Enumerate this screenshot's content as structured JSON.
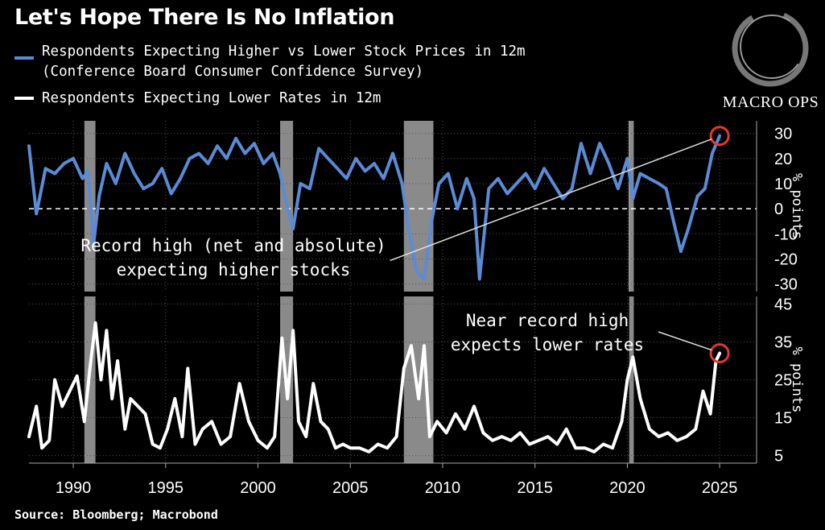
{
  "title": "Let's Hope There Is No Inflation",
  "legend": [
    {
      "label": "Respondents Expecting Higher vs Lower Stock Prices in 12m",
      "color": "#5b8bd6"
    },
    {
      "label": "(Conference Board Consumer Confidence Survey)",
      "color": ""
    },
    {
      "label": "Respondents Expecting Lower Rates in 12m",
      "color": "#ffffff"
    }
  ],
  "source": "Source: Bloomberg; Macrobond",
  "logo_text": "MACRO OPS",
  "chart_data": [
    {
      "type": "line",
      "name": "Respondents Expecting Higher vs Lower Stock Prices in 12m",
      "ylabel": "% points",
      "ylim": [
        -33,
        35
      ],
      "yticks": [
        30,
        20,
        10,
        0,
        -10,
        -20,
        -30
      ],
      "annotation": [
        "Record high (net and absolute)",
        "expecting higher stocks"
      ],
      "x": [
        1987.6,
        1988.0,
        1988.5,
        1989.0,
        1989.5,
        1990.0,
        1990.5,
        1990.8,
        1991.1,
        1991.4,
        1991.8,
        1992.3,
        1992.8,
        1993.3,
        1993.8,
        1994.3,
        1994.8,
        1995.3,
        1995.8,
        1996.3,
        1996.8,
        1997.3,
        1997.8,
        1998.3,
        1998.8,
        1999.3,
        1999.8,
        2000.3,
        2000.8,
        2001.2,
        2001.6,
        2001.9,
        2002.3,
        2002.8,
        2003.3,
        2003.8,
        2004.3,
        2004.8,
        2005.3,
        2005.8,
        2006.3,
        2006.8,
        2007.3,
        2007.8,
        2008.2,
        2008.6,
        2009.0,
        2009.4,
        2009.8,
        2010.3,
        2010.8,
        2011.3,
        2011.7,
        2012.0,
        2012.5,
        2013.0,
        2013.5,
        2014.0,
        2014.5,
        2015.0,
        2015.5,
        2016.0,
        2016.5,
        2017.0,
        2017.5,
        2018.0,
        2018.5,
        2019.0,
        2019.5,
        2020.0,
        2020.3,
        2020.7,
        2021.2,
        2021.7,
        2022.1,
        2022.5,
        2022.9,
        2023.3,
        2023.8,
        2024.2,
        2024.6,
        2025.0
      ],
      "y": [
        25,
        -2,
        16,
        14,
        18,
        20,
        12,
        15,
        -14,
        5,
        18,
        10,
        22,
        14,
        8,
        10,
        16,
        6,
        12,
        20,
        22,
        18,
        25,
        20,
        28,
        22,
        26,
        18,
        22,
        14,
        0,
        -8,
        10,
        8,
        24,
        20,
        16,
        12,
        20,
        15,
        18,
        12,
        22,
        10,
        -10,
        -25,
        -28,
        -5,
        10,
        14,
        0,
        12,
        4,
        -28,
        8,
        12,
        6,
        10,
        14,
        8,
        16,
        10,
        4,
        8,
        26,
        14,
        26,
        18,
        8,
        20,
        4,
        14,
        12,
        10,
        8,
        -5,
        -17,
        -8,
        5,
        8,
        22,
        29
      ]
    },
    {
      "type": "line",
      "name": "Respondents Expecting Lower Rates in 12m",
      "ylabel": "% points",
      "ylim": [
        3,
        47
      ],
      "yticks": [
        45,
        35,
        25,
        15,
        5
      ],
      "annotation": [
        "Near record high",
        "expects lower rates"
      ],
      "x": [
        1987.6,
        1988.0,
        1988.3,
        1988.7,
        1989.0,
        1989.4,
        1989.8,
        1990.2,
        1990.6,
        1990.9,
        1991.2,
        1991.5,
        1991.8,
        1992.1,
        1992.4,
        1992.8,
        1993.1,
        1993.5,
        1993.9,
        1994.3,
        1994.7,
        1995.1,
        1995.5,
        1995.9,
        1996.2,
        1996.6,
        1997.0,
        1997.5,
        1998.0,
        1998.5,
        1999.0,
        1999.5,
        2000.0,
        2000.5,
        2000.9,
        2001.3,
        2001.6,
        2001.9,
        2002.2,
        2002.6,
        2003.0,
        2003.4,
        2003.8,
        2004.2,
        2004.6,
        2005.0,
        2005.5,
        2006.0,
        2006.5,
        2007.0,
        2007.5,
        2007.9,
        2008.3,
        2008.7,
        2009.0,
        2009.3,
        2009.7,
        2010.2,
        2010.7,
        2011.2,
        2011.7,
        2012.2,
        2012.7,
        2013.2,
        2013.7,
        2014.2,
        2014.7,
        2015.2,
        2015.7,
        2016.2,
        2016.7,
        2017.2,
        2017.7,
        2018.2,
        2018.7,
        2019.2,
        2019.7,
        2020.0,
        2020.3,
        2020.7,
        2021.2,
        2021.7,
        2022.2,
        2022.7,
        2023.2,
        2023.7,
        2024.1,
        2024.5,
        2024.8,
        2025.0
      ],
      "y": [
        10,
        18,
        7,
        9,
        25,
        18,
        22,
        26,
        14,
        28,
        40,
        25,
        38,
        20,
        30,
        12,
        20,
        18,
        16,
        8,
        7,
        12,
        20,
        10,
        28,
        8,
        12,
        14,
        8,
        10,
        24,
        14,
        9,
        7,
        10,
        36,
        20,
        38,
        14,
        10,
        24,
        14,
        12,
        7,
        8,
        7,
        7,
        6,
        8,
        7,
        10,
        28,
        34,
        20,
        34,
        10,
        14,
        11,
        16,
        12,
        18,
        11,
        9,
        10,
        9,
        11,
        8,
        9,
        10,
        8,
        12,
        7,
        7,
        6,
        8,
        7,
        14,
        25,
        31,
        20,
        12,
        10,
        11,
        9,
        10,
        12,
        22,
        16,
        30,
        32
      ]
    }
  ],
  "x_ticks": [
    "1990",
    "1995",
    "2000",
    "2005",
    "2010",
    "2015",
    "2020",
    "2025"
  ],
  "recessions": [
    [
      1990.6,
      1991.2
    ],
    [
      2001.2,
      2001.9
    ],
    [
      2007.9,
      2009.5
    ],
    [
      2020.1,
      2020.35
    ]
  ]
}
